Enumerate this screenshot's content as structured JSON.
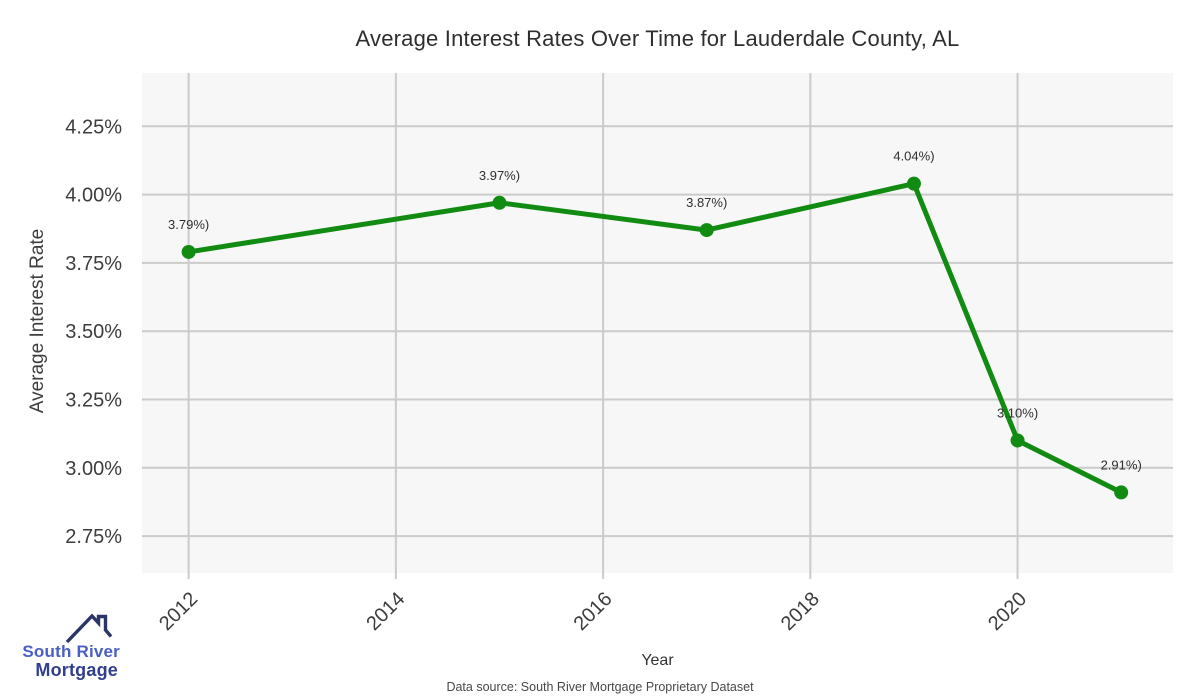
{
  "chart_data": {
    "type": "line",
    "title": "Average Interest Rates Over Time for Lauderdale County, AL",
    "xlabel": "Year",
    "ylabel": "Average Interest Rate",
    "x": [
      2012,
      2015,
      2017,
      2019,
      2020,
      2021
    ],
    "values": [
      3.79,
      3.97,
      3.87,
      4.04,
      3.1,
      2.91
    ],
    "point_labels": [
      "3.79%)",
      "3.97%)",
      "3.87%)",
      "4.04%)",
      "3.10%)",
      "2.91%)"
    ],
    "x_ticks": {
      "values": [
        2012,
        2014,
        2016,
        2018,
        2020
      ],
      "labels": [
        "2012",
        "2014",
        "2016",
        "2018",
        "2020"
      ]
    },
    "y_ticks": {
      "values": [
        4.25,
        4.0,
        3.75,
        3.5,
        3.25,
        3.0,
        2.75
      ],
      "labels": [
        "4.25%",
        "4.00%",
        "3.75%",
        "3.50%",
        "3.25%",
        "3.00%",
        "2.75%"
      ]
    },
    "xlim": [
      2011.55,
      2021.5
    ],
    "ylim": [
      2.615,
      4.445
    ],
    "grid": true,
    "legend": "none",
    "colors": {
      "line": "#128b12",
      "marker": "#128b12",
      "panel_bg": "#f7f7f7",
      "grid": "#cbcbcb",
      "tick": "#cbcbcb",
      "tick_label": "#3d3d3d",
      "point_label": "#2f2f2f"
    }
  },
  "footer": {
    "source": "Data source: South River Mortgage Proprietary Dataset"
  },
  "logo": {
    "line1": "South River",
    "line2": "Mortgage",
    "colors": {
      "house": "#2c3666",
      "line1": "#4a5fc5",
      "line2": "#303f8f"
    }
  }
}
